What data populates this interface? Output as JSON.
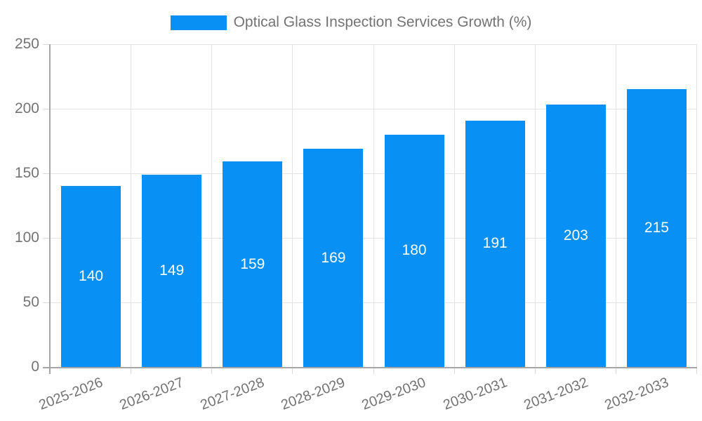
{
  "colors": {
    "bar": "#0890f5",
    "grid": "#e3e3e3",
    "tick": "#d9d9d9",
    "axis": "#a6a6a6",
    "text": "#737373",
    "bar_label": "#ffffff",
    "background": "#ffffff"
  },
  "legend": {
    "label": "Optical Glass Inspection Services Growth (%)"
  },
  "chart_data": {
    "type": "bar",
    "title": "Optical Glass Inspection Services Growth (%)",
    "categories": [
      "2025-2026",
      "2026-2027",
      "2027-2028",
      "2028-2029",
      "2029-2030",
      "2030-2031",
      "2031-2032",
      "2032-2033"
    ],
    "values": [
      140,
      149,
      159,
      169,
      180,
      191,
      203,
      215
    ],
    "series": [
      {
        "name": "Optical Glass Inspection Services Growth (%)",
        "values": [
          140,
          149,
          159,
          169,
          180,
          191,
          203,
          215
        ]
      }
    ],
    "xlabel": "",
    "ylabel": "",
    "ylim": [
      0,
      250
    ],
    "yticks": [
      0,
      50,
      100,
      150,
      200,
      250
    ],
    "grid": true,
    "legend_position": "top-center",
    "bar_value_labels": "white-centered-inside-bars",
    "x_tick_rotation_deg": -21
  }
}
